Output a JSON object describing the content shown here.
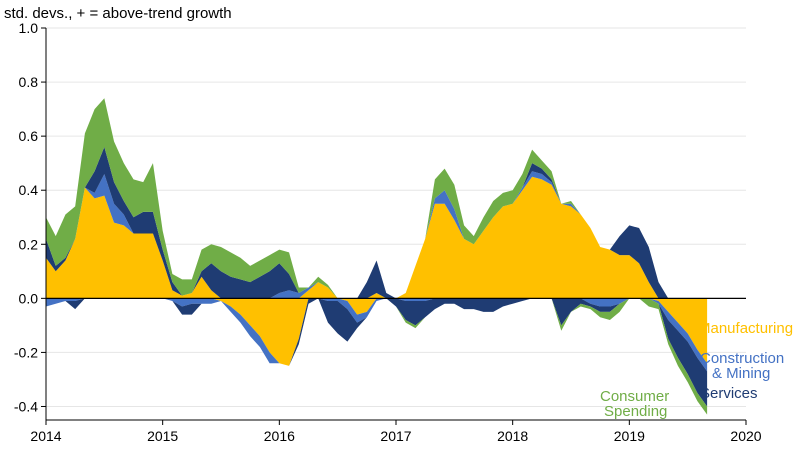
{
  "chart_data": {
    "type": "area",
    "subtype": "stacked-contribution",
    "ylabel": "std. devs., + = above-trend growth",
    "ylim": [
      -0.45,
      1.0
    ],
    "yticks": [
      1.0,
      0.8,
      0.6,
      0.4,
      0.2,
      0.0,
      -0.2,
      -0.4
    ],
    "ytick_labels": [
      "1.0",
      "0.8",
      "0.6",
      "0.4",
      "0.2",
      "0.0",
      "-0.2",
      "-0.4"
    ],
    "xlim": [
      2014.0,
      2020.0
    ],
    "xticks": [
      2014,
      2015,
      2016,
      2017,
      2018,
      2019,
      2020
    ],
    "xtick_labels": [
      "2014",
      "2015",
      "2016",
      "2017",
      "2018",
      "2019",
      "2020"
    ],
    "grid": true,
    "x": [
      2014.0,
      2014.0833,
      2014.1667,
      2014.25,
      2014.3333,
      2014.4167,
      2014.5,
      2014.5833,
      2014.6667,
      2014.75,
      2014.8333,
      2014.9167,
      2015.0,
      2015.0833,
      2015.1667,
      2015.25,
      2015.3333,
      2015.4167,
      2015.5,
      2015.5833,
      2015.6667,
      2015.75,
      2015.8333,
      2015.9167,
      2016.0,
      2016.0833,
      2016.1667,
      2016.25,
      2016.3333,
      2016.4167,
      2016.5,
      2016.5833,
      2016.6667,
      2016.75,
      2016.8333,
      2016.9167,
      2017.0,
      2017.0833,
      2017.1667,
      2017.25,
      2017.3333,
      2017.4167,
      2017.5,
      2017.5833,
      2017.6667,
      2017.75,
      2017.8333,
      2017.9167,
      2018.0,
      2018.0833,
      2018.1667,
      2018.25,
      2018.3333,
      2018.4167,
      2018.5,
      2018.5833,
      2018.6667,
      2018.75,
      2018.8333,
      2018.9167,
      2019.0,
      2019.0833,
      2019.1667,
      2019.25,
      2019.3333,
      2019.4167,
      2019.5,
      2019.5833,
      2019.6667
    ],
    "series": [
      {
        "name": "Manufacturing",
        "color": "#FFC000",
        "values": [
          0.15,
          0.1,
          0.14,
          0.22,
          0.41,
          0.37,
          0.38,
          0.28,
          0.27,
          0.24,
          0.24,
          0.24,
          0.14,
          0.03,
          0.01,
          0.02,
          0.08,
          0.03,
          -0.01,
          -0.03,
          -0.06,
          -0.1,
          -0.14,
          -0.2,
          -0.24,
          -0.25,
          -0.15,
          0.03,
          0.06,
          0.04,
          0.0,
          -0.01,
          -0.06,
          -0.05,
          0.02,
          0.0,
          0.0,
          0.02,
          0.12,
          0.22,
          0.35,
          0.35,
          0.29,
          0.22,
          0.2,
          0.25,
          0.3,
          0.34,
          0.35,
          0.4,
          0.45,
          0.44,
          0.42,
          0.35,
          0.34,
          0.31,
          0.26,
          0.19,
          0.18,
          0.16,
          0.16,
          0.13,
          0.06,
          -0.01,
          -0.05,
          -0.09,
          -0.13,
          -0.19,
          -0.24
        ]
      },
      {
        "name": "Construction & Mining",
        "color": "#4472C4",
        "values": [
          -0.03,
          -0.02,
          -0.01,
          -0.01,
          0.0,
          0.02,
          0.08,
          0.07,
          0.04,
          0.0,
          0.0,
          0.0,
          0.0,
          -0.01,
          -0.03,
          -0.02,
          -0.02,
          -0.02,
          0.0,
          -0.02,
          -0.03,
          -0.04,
          -0.04,
          -0.04,
          0.02,
          0.03,
          0.02,
          0.01,
          0.0,
          -0.01,
          -0.01,
          -0.03,
          -0.03,
          -0.02,
          -0.01,
          0.0,
          0.0,
          -0.01,
          -0.01,
          -0.01,
          0.02,
          0.05,
          0.04,
          0.0,
          0.0,
          0.0,
          0.0,
          0.0,
          0.0,
          0.01,
          0.02,
          0.02,
          0.01,
          0.0,
          0.01,
          0.0,
          -0.02,
          -0.03,
          -0.03,
          -0.02,
          0.0,
          0.0,
          0.0,
          -0.01,
          -0.03,
          -0.03,
          -0.03,
          -0.03,
          -0.03
        ]
      },
      {
        "name": "Services",
        "color": "#1F3C73",
        "values": [
          0.07,
          0.02,
          0.01,
          -0.03,
          0.0,
          0.08,
          0.1,
          0.08,
          0.05,
          0.06,
          0.08,
          0.08,
          0.04,
          0.03,
          -0.03,
          -0.04,
          0.02,
          0.1,
          0.1,
          0.08,
          0.07,
          0.06,
          0.08,
          0.1,
          0.11,
          0.06,
          -0.02,
          -0.02,
          0.0,
          -0.08,
          -0.12,
          -0.12,
          -0.02,
          0.06,
          0.12,
          0.02,
          -0.03,
          -0.07,
          -0.09,
          -0.06,
          -0.04,
          -0.02,
          -0.02,
          -0.04,
          -0.04,
          -0.05,
          -0.05,
          -0.03,
          -0.02,
          -0.01,
          0.03,
          0.02,
          0.01,
          -0.1,
          -0.05,
          -0.02,
          -0.01,
          -0.02,
          -0.02,
          0.07,
          0.11,
          0.13,
          0.13,
          0.06,
          -0.07,
          -0.1,
          -0.12,
          -0.13,
          -0.13
        ]
      },
      {
        "name": "Consumer Spending",
        "color": "#70AD47",
        "values": [
          0.08,
          0.11,
          0.16,
          0.12,
          0.2,
          0.23,
          0.18,
          0.15,
          0.14,
          0.14,
          0.11,
          0.18,
          0.07,
          0.03,
          0.06,
          0.05,
          0.08,
          0.07,
          0.09,
          0.09,
          0.08,
          0.06,
          0.06,
          0.06,
          0.05,
          0.08,
          0.02,
          0.0,
          0.02,
          0.01,
          0.0,
          0.0,
          0.0,
          0.0,
          0.0,
          0.0,
          0.0,
          -0.01,
          -0.01,
          0.0,
          0.07,
          0.08,
          0.09,
          0.05,
          0.03,
          0.05,
          0.06,
          0.05,
          0.05,
          0.05,
          0.05,
          0.03,
          0.03,
          -0.02,
          0.01,
          -0.01,
          -0.01,
          -0.02,
          -0.03,
          -0.03,
          0.0,
          0.0,
          -0.03,
          -0.02,
          -0.02,
          -0.03,
          -0.03,
          -0.03,
          -0.03
        ]
      }
    ],
    "annotations": [
      {
        "text": "Manufacturing",
        "color": "#FFC000"
      },
      {
        "lines": [
          "Construction",
          "& Mining"
        ],
        "color": "#4472C4"
      },
      {
        "text": "Services",
        "color": "#1F3C73"
      },
      {
        "lines": [
          "Consumer",
          "Spending"
        ],
        "color": "#70AD47"
      }
    ]
  }
}
